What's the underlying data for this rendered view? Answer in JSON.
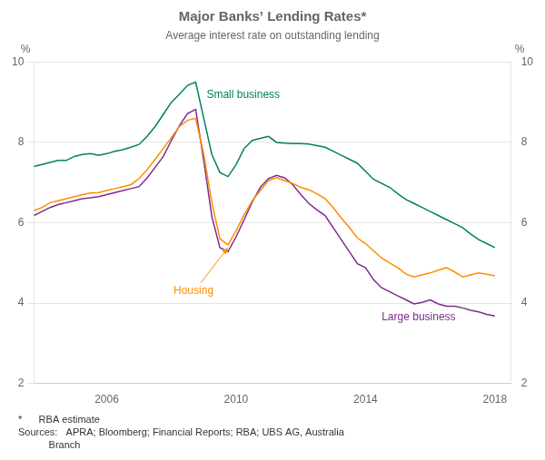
{
  "chart_data": {
    "type": "line",
    "title": "Major Banks’ Lending Rates*",
    "subtitle": "Average interest rate on outstanding lending",
    "ylabel": "%",
    "y2label": "%",
    "footnotes": [
      "*      RBA estimate",
      "Sources:   APRA; Bloomberg; Financial Reports; RBA; UBS AG, Australia\n           Branch"
    ],
    "x": [
      2003.75,
      2004.0,
      2004.25,
      2004.5,
      2004.75,
      2005.0,
      2005.25,
      2005.5,
      2005.75,
      2006.0,
      2006.25,
      2006.5,
      2006.75,
      2007.0,
      2007.25,
      2007.5,
      2007.75,
      2008.0,
      2008.25,
      2008.5,
      2008.75,
      2009.0,
      2009.25,
      2009.5,
      2009.75,
      2010.0,
      2010.25,
      2010.5,
      2010.75,
      2011.0,
      2011.25,
      2011.5,
      2011.75,
      2012.0,
      2012.25,
      2012.5,
      2012.75,
      2013.0,
      2013.25,
      2013.5,
      2013.75,
      2014.0,
      2014.25,
      2014.5,
      2014.75,
      2015.0,
      2015.25,
      2015.5,
      2015.75,
      2016.0,
      2016.25,
      2016.5,
      2016.75,
      2017.0,
      2017.25,
      2017.5,
      2017.75,
      2018.0
    ],
    "series": [
      {
        "name": "Small business",
        "color": "#008060",
        "values": [
          7.4,
          7.45,
          7.5,
          7.55,
          7.55,
          7.65,
          7.7,
          7.72,
          7.68,
          7.72,
          7.78,
          7.82,
          7.88,
          7.95,
          8.15,
          8.4,
          8.7,
          9.0,
          9.2,
          9.42,
          9.5,
          8.6,
          7.7,
          7.25,
          7.15,
          7.45,
          7.85,
          8.05,
          8.1,
          8.15,
          8.0,
          7.98,
          7.97,
          7.97,
          7.96,
          7.92,
          7.88,
          7.78,
          7.68,
          7.58,
          7.48,
          7.28,
          7.08,
          6.98,
          6.88,
          6.72,
          6.58,
          6.48,
          6.38,
          6.28,
          6.18,
          6.08,
          5.98,
          5.88,
          5.72,
          5.58,
          5.48,
          5.38
        ]
      },
      {
        "name": "Housing",
        "color": "#FF8C00",
        "values": [
          6.3,
          6.38,
          6.5,
          6.55,
          6.6,
          6.65,
          6.7,
          6.74,
          6.75,
          6.8,
          6.85,
          6.9,
          6.95,
          7.1,
          7.32,
          7.58,
          7.85,
          8.12,
          8.4,
          8.55,
          8.6,
          7.7,
          6.5,
          5.6,
          5.45,
          5.8,
          6.2,
          6.55,
          6.8,
          7.05,
          7.12,
          7.05,
          6.98,
          6.88,
          6.82,
          6.72,
          6.6,
          6.38,
          6.12,
          5.88,
          5.62,
          5.48,
          5.3,
          5.12,
          5.0,
          4.88,
          4.72,
          4.65,
          4.7,
          4.75,
          4.82,
          4.88,
          4.78,
          4.65,
          4.7,
          4.75,
          4.72,
          4.68
        ]
      },
      {
        "name": "Large business",
        "color": "#7B2D8B",
        "values": [
          6.18,
          6.28,
          6.38,
          6.45,
          6.5,
          6.55,
          6.6,
          6.62,
          6.65,
          6.7,
          6.75,
          6.8,
          6.85,
          6.9,
          7.12,
          7.38,
          7.65,
          8.05,
          8.42,
          8.72,
          8.82,
          7.55,
          6.15,
          5.38,
          5.28,
          5.65,
          6.08,
          6.52,
          6.88,
          7.1,
          7.18,
          7.12,
          6.95,
          6.7,
          6.48,
          6.32,
          6.18,
          5.88,
          5.58,
          5.28,
          4.98,
          4.88,
          4.58,
          4.38,
          4.28,
          4.18,
          4.08,
          3.98,
          4.02,
          4.08,
          3.98,
          3.92,
          3.92,
          3.88,
          3.82,
          3.78,
          3.72,
          3.68
        ]
      }
    ],
    "xlim": [
      2003.75,
      2018.5
    ],
    "xticks": [
      2006,
      2010,
      2014,
      2018
    ],
    "ylim": [
      2,
      10
    ],
    "yticks": [
      2,
      4,
      6,
      8,
      10
    ],
    "y2lim": [
      2,
      10
    ],
    "y2ticks": [
      2,
      4,
      6,
      8,
      10
    ],
    "grid": true,
    "legend": false
  }
}
